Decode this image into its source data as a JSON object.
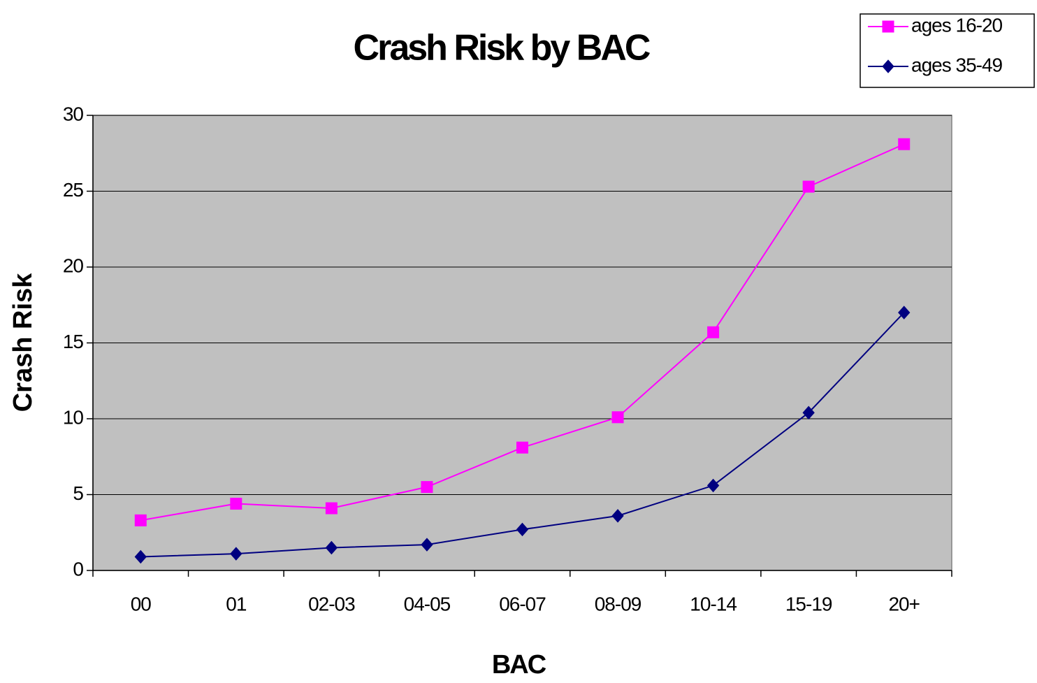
{
  "chart_data": {
    "type": "line",
    "title": "Crash Risk by BAC",
    "x_label": "BAC",
    "y_label": "Crash Risk",
    "categories": [
      "00",
      "01",
      "02-03",
      "04-05",
      "06-07",
      "08-09",
      "10-14",
      "15-19",
      "20+"
    ],
    "series": [
      {
        "name": "ages 16-20",
        "color": "#ff00ff",
        "marker": "square",
        "values": [
          3.3,
          4.4,
          4.1,
          5.5,
          8.1,
          10.1,
          15.7,
          25.3,
          28.1
        ]
      },
      {
        "name": "ages 35-49",
        "color": "#000080",
        "marker": "diamond",
        "values": [
          0.9,
          1.1,
          1.5,
          1.7,
          2.7,
          3.6,
          5.6,
          10.4,
          17.0
        ]
      }
    ],
    "ylim": [
      0,
      30
    ],
    "yticks": [
      0,
      5,
      10,
      15,
      20,
      25,
      30
    ],
    "grid": true,
    "legend": "upper right"
  }
}
